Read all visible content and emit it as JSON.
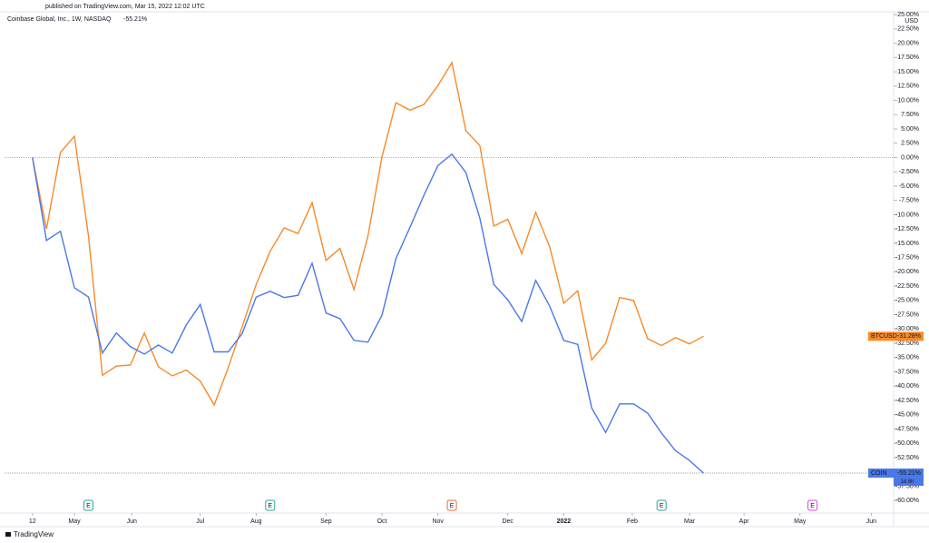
{
  "header": {
    "published": "published on TradingView.com, Mar 15, 2022 12:02 UTC",
    "footer": "TradingView"
  },
  "chart_data": {
    "type": "line",
    "title": "Coinbase Global, Inc., 1W, NASDAQ",
    "y_unit": "USD",
    "x": [
      0,
      1,
      2,
      3,
      4,
      5,
      6,
      7,
      8,
      9,
      10,
      11,
      12,
      13,
      14,
      15,
      16,
      17,
      18,
      19,
      20,
      21,
      22,
      23,
      24,
      25,
      26,
      27,
      28,
      29,
      30,
      31,
      32,
      33,
      34,
      35,
      36,
      37,
      38,
      39,
      40,
      41,
      42,
      43,
      44,
      45,
      46,
      47,
      48
    ],
    "xlim": [
      -2,
      61.6
    ],
    "xticks": [
      {
        "value": 0,
        "label": "12"
      },
      {
        "value": 3,
        "label": "May"
      },
      {
        "value": 7.1,
        "label": "Jun"
      },
      {
        "value": 12,
        "label": "Jul"
      },
      {
        "value": 16,
        "label": "Aug"
      },
      {
        "value": 21,
        "label": "Sep"
      },
      {
        "value": 25,
        "label": "Oct"
      },
      {
        "value": 29,
        "label": "Nov"
      },
      {
        "value": 34,
        "label": "Dec"
      },
      {
        "value": 38,
        "label": "2022"
      },
      {
        "value": 42.9,
        "label": "Feb"
      },
      {
        "value": 47,
        "label": "Mar"
      },
      {
        "value": 50.9,
        "label": "Apr"
      },
      {
        "value": 54.9,
        "label": "May"
      },
      {
        "value": 60,
        "label": "Jun"
      }
    ],
    "ylim": [
      -62.2,
      25.5
    ],
    "yticks": [
      {
        "value": 25,
        "label": "25.00%"
      },
      {
        "value": 22.5,
        "label": "22.50%"
      },
      {
        "value": 20,
        "label": "20.00%"
      },
      {
        "value": 17.5,
        "label": "17.50%"
      },
      {
        "value": 15,
        "label": "15.00%"
      },
      {
        "value": 12.5,
        "label": "12.50%"
      },
      {
        "value": 10,
        "label": "10.00%"
      },
      {
        "value": 7.5,
        "label": "7.50%"
      },
      {
        "value": 5,
        "label": "5.00%"
      },
      {
        "value": 2.5,
        "label": "2.50%"
      },
      {
        "value": 0,
        "label": "0.00%"
      },
      {
        "value": -2.5,
        "label": "-2.50%"
      },
      {
        "value": -5,
        "label": "-5.00%"
      },
      {
        "value": -7.5,
        "label": "-7.50%"
      },
      {
        "value": -10,
        "label": "-10.00%"
      },
      {
        "value": -12.5,
        "label": "-12.50%"
      },
      {
        "value": -15,
        "label": "-15.00%"
      },
      {
        "value": -17.5,
        "label": "-17.50%"
      },
      {
        "value": -20,
        "label": "-20.00%"
      },
      {
        "value": -22.5,
        "label": "-22.50%"
      },
      {
        "value": -25,
        "label": "-25.00%"
      },
      {
        "value": -27.5,
        "label": "-27.50%"
      },
      {
        "value": -30,
        "label": "-30.00%"
      },
      {
        "value": -32.5,
        "label": "-32.50%"
      },
      {
        "value": -35,
        "label": "-35.00%"
      },
      {
        "value": -37.5,
        "label": "-37.50%"
      },
      {
        "value": -40,
        "label": "-40.00%"
      },
      {
        "value": -42.5,
        "label": "-42.50%"
      },
      {
        "value": -45,
        "label": "-45.00%"
      },
      {
        "value": -47.5,
        "label": "-47.50%"
      },
      {
        "value": -50,
        "label": "-50.00%"
      },
      {
        "value": -52.5,
        "label": "-52.50%"
      },
      {
        "value": -55,
        "label": "-55.00%"
      },
      {
        "value": -57.5,
        "label": "-57.50%"
      },
      {
        "value": -60,
        "label": "-60.00%"
      }
    ],
    "series": [
      {
        "name": "BTCUSD",
        "color": "#f68a2a",
        "tag_label": "-31.28%",
        "values": [
          0,
          -12.5,
          0.9,
          3.7,
          -13.7,
          -38.1,
          -36.5,
          -36.3,
          -30.7,
          -36.6,
          -38.2,
          -37.2,
          -39.1,
          -43.3,
          -36.8,
          -29.6,
          -22.2,
          -16.4,
          -12.3,
          -13.3,
          -7.9,
          -18.0,
          -15.9,
          -23.1,
          -13.7,
          0.1,
          9.6,
          8.3,
          9.3,
          12.6,
          16.6,
          4.7,
          2.1,
          -12.0,
          -10.8,
          -16.8,
          -9.6,
          -15.6,
          -25.5,
          -23.3,
          -35.4,
          -32.5,
          -24.5,
          -25.0,
          -31.7,
          -32.9,
          -31.5,
          -32.6,
          -31.28
        ]
      },
      {
        "name": "COIN",
        "color": "#4a78e8",
        "tag_label": "-55.21%",
        "countdown": "1d 8h",
        "values": [
          0,
          -14.5,
          -12.9,
          -22.8,
          -24.4,
          -34.2,
          -30.7,
          -33.1,
          -34.4,
          -32.8,
          -34.2,
          -29.3,
          -25.7,
          -34.0,
          -34.0,
          -30.8,
          -24.4,
          -23.4,
          -24.5,
          -24.1,
          -18.5,
          -27.2,
          -28.2,
          -32.0,
          -32.3,
          -27.6,
          -17.7,
          -12.2,
          -6.6,
          -1.4,
          0.6,
          -2.6,
          -10.6,
          -22.2,
          -24.9,
          -28.7,
          -21.5,
          -26.0,
          -32.0,
          -32.7,
          -43.8,
          -48.1,
          -43.1,
          -43.1,
          -44.7,
          -48.2,
          -51.3,
          -53.0,
          -55.21
        ]
      }
    ],
    "events": [
      {
        "x": 4,
        "label": "E",
        "color": "#26a69a"
      },
      {
        "x": 17,
        "label": "E",
        "color": "#26a69a"
      },
      {
        "x": 30,
        "label": "E",
        "color": "#f2643c"
      },
      {
        "x": 45,
        "label": "E",
        "color": "#26a69a"
      },
      {
        "x": 55.8,
        "label": "E",
        "color": "#d548e0"
      }
    ]
  }
}
